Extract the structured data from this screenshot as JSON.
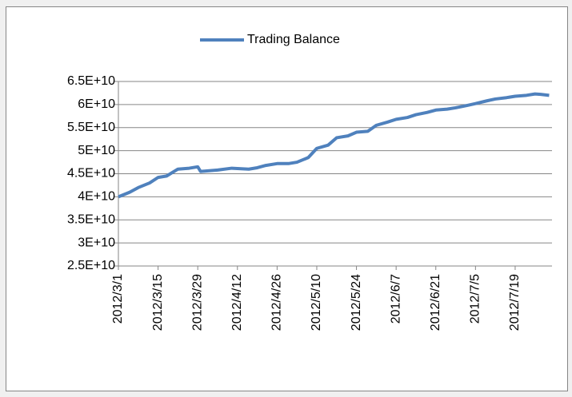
{
  "chart_data": {
    "type": "line",
    "x": [
      "2012/3/1",
      "2012/3/5",
      "2012/3/8",
      "2012/3/12",
      "2012/3/15",
      "2012/3/18",
      "2012/3/22",
      "2012/3/26",
      "2012/3/29",
      "2012/3/30",
      "2012/4/5",
      "2012/4/10",
      "2012/4/16",
      "2012/4/19",
      "2012/4/22",
      "2012/4/26",
      "2012/4/30",
      "2012/5/3",
      "2012/5/7",
      "2012/5/10",
      "2012/5/14",
      "2012/5/17",
      "2012/5/21",
      "2012/5/24",
      "2012/5/28",
      "2012/5/31",
      "2012/6/4",
      "2012/6/7",
      "2012/6/11",
      "2012/6/14",
      "2012/6/18",
      "2012/6/21",
      "2012/6/25",
      "2012/6/28",
      "2012/7/2",
      "2012/7/5",
      "2012/7/9",
      "2012/7/12",
      "2012/7/16",
      "2012/7/19",
      "2012/7/23",
      "2012/7/26",
      "2012/7/28",
      "2012/7/31"
    ],
    "series": [
      {
        "name": "Trading Balance",
        "color": "#4f81bd",
        "values": [
          40000000000,
          41000000000,
          42000000000,
          43000000000,
          44200000000,
          44500000000,
          46000000000,
          46200000000,
          46500000000,
          45500000000,
          45800000000,
          46200000000,
          46000000000,
          46300000000,
          46800000000,
          47200000000,
          47200000000,
          47500000000,
          48500000000,
          50500000000,
          51200000000,
          52800000000,
          53200000000,
          54000000000,
          54200000000,
          55500000000,
          56200000000,
          56800000000,
          57200000000,
          57800000000,
          58300000000,
          58800000000,
          59000000000,
          59300000000,
          59800000000,
          60200000000,
          60800000000,
          61200000000,
          61500000000,
          61800000000,
          62000000000,
          62300000000,
          62200000000,
          62000000000
        ]
      }
    ],
    "xlim": [
      "2012/3/1",
      "2012/7/31"
    ],
    "xticks": [
      "2012/3/1",
      "2012/3/15",
      "2012/3/29",
      "2012/4/12",
      "2012/4/26",
      "2012/5/10",
      "2012/5/24",
      "2012/6/7",
      "2012/6/21",
      "2012/7/5",
      "2012/7/19"
    ],
    "ylim": [
      25000000000,
      65000000000
    ],
    "yticks": [
      {
        "value": 25000000000,
        "label": "2.5E+10"
      },
      {
        "value": 30000000000,
        "label": "3E+10"
      },
      {
        "value": 35000000000,
        "label": "3.5E+10"
      },
      {
        "value": 40000000000,
        "label": "4E+10"
      },
      {
        "value": 45000000000,
        "label": "4.5E+10"
      },
      {
        "value": 50000000000,
        "label": "5E+10"
      },
      {
        "value": 55000000000,
        "label": "5.5E+10"
      },
      {
        "value": 60000000000,
        "label": "6E+10"
      },
      {
        "value": 65000000000,
        "label": "6.5E+10"
      }
    ],
    "grid": true,
    "legend": "top"
  }
}
